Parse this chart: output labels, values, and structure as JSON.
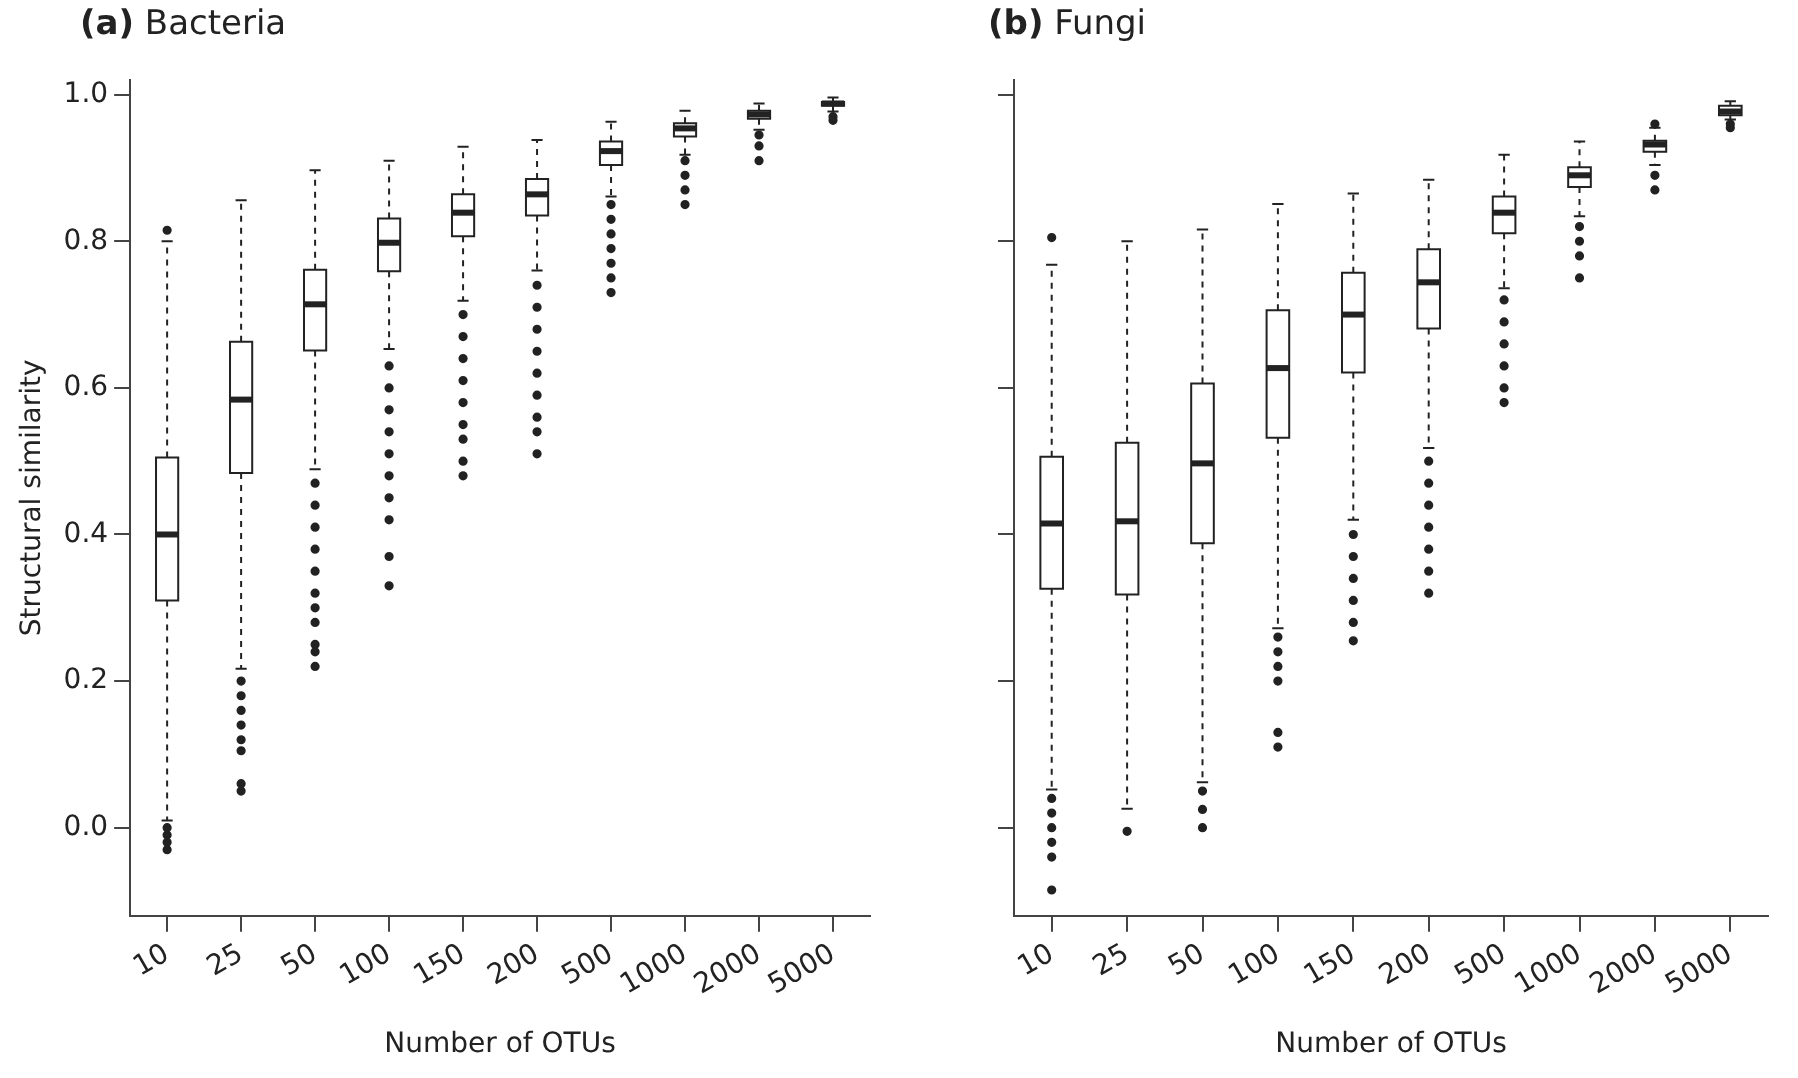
{
  "chart_data": [
    {
      "type": "box",
      "title": "(a) Bacteria",
      "xlabel": "Number of OTUs",
      "ylabel": "Structural similarity",
      "color": "#222222",
      "marker": "circle",
      "grid": false,
      "categories": [
        "10",
        "25",
        "50",
        "100",
        "150",
        "200",
        "500",
        "1000",
        "2000",
        "5000"
      ],
      "ylim": [
        -0.12,
        1.02
      ],
      "yticks": [
        {
          "value": 0,
          "label": "0.0"
        },
        {
          "value": 0.2,
          "label": "0.2"
        },
        {
          "value": 0.4,
          "label": "0.4"
        },
        {
          "value": 0.6,
          "label": "0.6"
        },
        {
          "value": 0.8,
          "label": "0.8"
        },
        {
          "value": 1,
          "label": "1.0"
        }
      ],
      "boxes": [
        {
          "low": 0.01,
          "q1": 0.31,
          "median": 0.4,
          "q3": 0.505,
          "high": 0.8,
          "outliers": [
            0.815,
            0.0,
            -0.01,
            -0.02,
            -0.03
          ]
        },
        {
          "low": 0.217,
          "q1": 0.484,
          "median": 0.584,
          "q3": 0.663,
          "high": 0.856,
          "outliers": [
            0.2,
            0.18,
            0.16,
            0.14,
            0.12,
            0.105,
            0.06,
            0.05
          ]
        },
        {
          "low": 0.489,
          "q1": 0.651,
          "median": 0.714,
          "q3": 0.761,
          "high": 0.897,
          "outliers": [
            0.47,
            0.44,
            0.41,
            0.38,
            0.35,
            0.32,
            0.3,
            0.28,
            0.25,
            0.24,
            0.22
          ]
        },
        {
          "low": 0.653,
          "q1": 0.759,
          "median": 0.798,
          "q3": 0.831,
          "high": 0.91,
          "outliers": [
            0.63,
            0.6,
            0.57,
            0.54,
            0.51,
            0.48,
            0.45,
            0.42,
            0.37,
            0.33
          ]
        },
        {
          "low": 0.719,
          "q1": 0.807,
          "median": 0.839,
          "q3": 0.864,
          "high": 0.929,
          "outliers": [
            0.7,
            0.67,
            0.64,
            0.61,
            0.58,
            0.55,
            0.53,
            0.5,
            0.48
          ]
        },
        {
          "low": 0.76,
          "q1": 0.835,
          "median": 0.864,
          "q3": 0.885,
          "high": 0.938,
          "outliers": [
            0.74,
            0.71,
            0.68,
            0.65,
            0.62,
            0.59,
            0.56,
            0.54,
            0.51
          ]
        },
        {
          "low": 0.861,
          "q1": 0.904,
          "median": 0.923,
          "q3": 0.936,
          "high": 0.963,
          "outliers": [
            0.85,
            0.83,
            0.81,
            0.79,
            0.77,
            0.75,
            0.73
          ]
        },
        {
          "low": 0.918,
          "q1": 0.943,
          "median": 0.954,
          "q3": 0.961,
          "high": 0.978,
          "outliers": [
            0.91,
            0.89,
            0.87,
            0.85
          ]
        },
        {
          "low": 0.952,
          "q1": 0.967,
          "median": 0.973,
          "q3": 0.978,
          "high": 0.988,
          "outliers": [
            0.945,
            0.93,
            0.91
          ]
        },
        {
          "low": 0.977,
          "q1": 0.985,
          "median": 0.988,
          "q3": 0.99,
          "high": 0.996,
          "outliers": [
            0.97,
            0.965
          ]
        }
      ]
    },
    {
      "type": "box",
      "title": "(b) Fungi",
      "xlabel": "Number of OTUs",
      "color": "#222222",
      "marker": "circle",
      "grid": false,
      "tick_labels": "x",
      "categories": [
        "10",
        "25",
        "50",
        "100",
        "150",
        "200",
        "500",
        "1000",
        "2000",
        "5000"
      ],
      "ylim": [
        -0.12,
        1.02
      ],
      "yticks": [
        {
          "value": 0,
          "label": null
        },
        {
          "value": 0.2,
          "label": null
        },
        {
          "value": 0.4,
          "label": null
        },
        {
          "value": 0.6,
          "label": null
        },
        {
          "value": 0.8,
          "label": null
        },
        {
          "value": 1,
          "label": null
        }
      ],
      "boxes": [
        {
          "low": 0.052,
          "q1": 0.326,
          "median": 0.415,
          "q3": 0.506,
          "high": 0.768,
          "outliers": [
            0.805,
            0.04,
            0.02,
            0.0,
            -0.02,
            -0.04,
            -0.085
          ]
        },
        {
          "low": 0.026,
          "q1": 0.318,
          "median": 0.418,
          "q3": 0.525,
          "high": 0.8,
          "outliers": [
            -0.005
          ]
        },
        {
          "low": 0.062,
          "q1": 0.388,
          "median": 0.497,
          "q3": 0.606,
          "high": 0.816,
          "outliers": [
            0.05,
            0.025,
            0.0
          ]
        },
        {
          "low": 0.272,
          "q1": 0.532,
          "median": 0.627,
          "q3": 0.706,
          "high": 0.851,
          "outliers": [
            0.26,
            0.24,
            0.22,
            0.2,
            0.13,
            0.11
          ]
        },
        {
          "low": 0.42,
          "q1": 0.621,
          "median": 0.7,
          "q3": 0.757,
          "high": 0.865,
          "outliers": [
            0.4,
            0.37,
            0.34,
            0.31,
            0.28,
            0.255
          ]
        },
        {
          "low": 0.518,
          "q1": 0.681,
          "median": 0.744,
          "q3": 0.789,
          "high": 0.884,
          "outliers": [
            0.5,
            0.47,
            0.44,
            0.41,
            0.38,
            0.35,
            0.32
          ]
        },
        {
          "low": 0.736,
          "q1": 0.811,
          "median": 0.839,
          "q3": 0.861,
          "high": 0.918,
          "outliers": [
            0.72,
            0.69,
            0.66,
            0.63,
            0.6,
            0.58
          ]
        },
        {
          "low": 0.834,
          "q1": 0.874,
          "median": 0.89,
          "q3": 0.901,
          "high": 0.936,
          "outliers": [
            0.82,
            0.8,
            0.78,
            0.75
          ]
        },
        {
          "low": 0.904,
          "q1": 0.922,
          "median": 0.932,
          "q3": 0.937,
          "high": 0.955,
          "outliers": [
            0.96,
            0.89,
            0.87
          ]
        },
        {
          "low": 0.966,
          "q1": 0.972,
          "median": 0.977,
          "q3": 0.985,
          "high": 0.991,
          "outliers": [
            0.96,
            0.955
          ]
        }
      ]
    }
  ]
}
